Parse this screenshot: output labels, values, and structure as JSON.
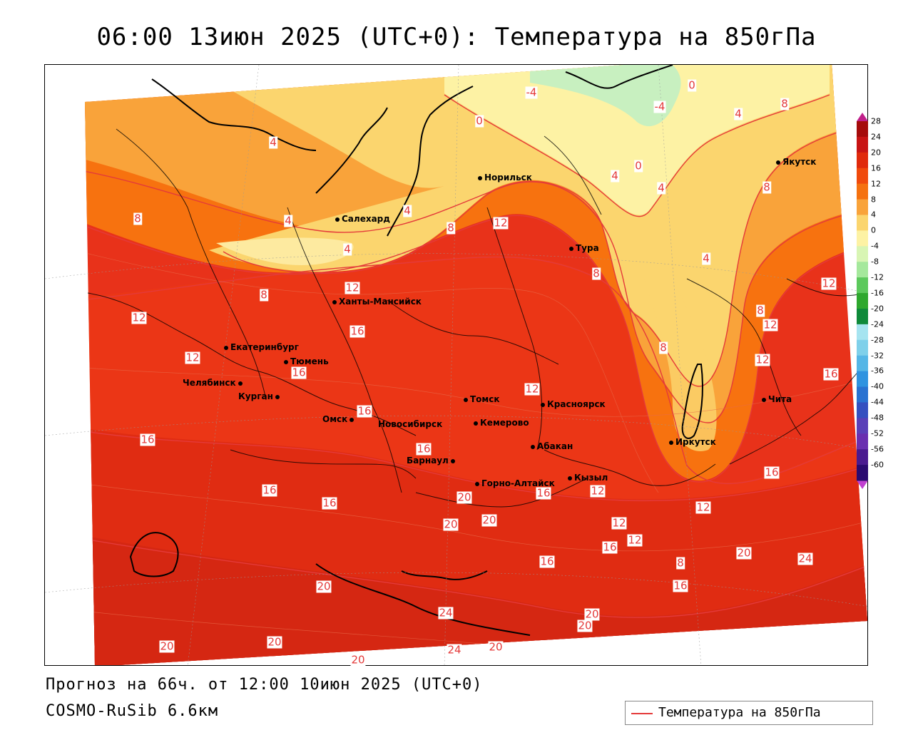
{
  "title": "06:00 13июн 2025 (UTC+0): Температура на 850гПа",
  "footer": {
    "forecast": "Прогноз на 66ч. от 12:00 10июн 2025 (UTC+0)",
    "model": "COSMO-RuSib 6.6км"
  },
  "legend": {
    "label": "Температура на 850гПа",
    "line_color": "#e43a3a"
  },
  "colorbar": {
    "ticks": [
      "28",
      "24",
      "20",
      "16",
      "12",
      "8",
      "4",
      "0",
      "-4",
      "-8",
      "-12",
      "-16",
      "-20",
      "-24",
      "-28",
      "-32",
      "-36",
      "-40",
      "-44",
      "-48",
      "-52",
      "-56",
      "-60"
    ],
    "colors": [
      "#a50b0b",
      "#c81414",
      "#e02a0c",
      "#f04a0c",
      "#f5710f",
      "#f9a33a",
      "#fbd56e",
      "#fdf2a4",
      "#d8f5b4",
      "#a5e89c",
      "#5cc95c",
      "#2ea82e",
      "#0f8a3a",
      "#a6e4f0",
      "#7fd0ea",
      "#55b6e6",
      "#2f93e0",
      "#2a72d1",
      "#3550c0",
      "#5a40b8",
      "#6a2fb0",
      "#4a1a90",
      "#2a0a70"
    ]
  },
  "cities": [
    {
      "name": "Якутск"
    },
    {
      "name": "Норильск"
    },
    {
      "name": "Салехард"
    },
    {
      "name": "Тура"
    },
    {
      "name": "Ханты-Мансийск"
    },
    {
      "name": "Екатеринбург"
    },
    {
      "name": "Тюмень"
    },
    {
      "name": "Челябинск"
    },
    {
      "name": "Курган"
    },
    {
      "name": "Омск"
    },
    {
      "name": "Новосибирск"
    },
    {
      "name": "Томск"
    },
    {
      "name": "Кемерово"
    },
    {
      "name": "Красноярск"
    },
    {
      "name": "Абакан"
    },
    {
      "name": "Барнаул"
    },
    {
      "name": "Горно-Алтайск"
    },
    {
      "name": "Кызыл"
    },
    {
      "name": "Иркутск"
    },
    {
      "name": "Чита"
    }
  ],
  "contour_labels": [
    "-4",
    "0",
    "-4",
    "4",
    "8",
    "0",
    "4",
    "0",
    "8",
    "4",
    "4",
    "8",
    "4",
    "4",
    "12",
    "8",
    "4",
    "8",
    "4",
    "12",
    "8",
    "8",
    "12",
    "12",
    "12",
    "16",
    "16",
    "12",
    "12",
    "16",
    "16",
    "16",
    "16",
    "16",
    "16",
    "16",
    "12",
    "8",
    "12",
    "12",
    "16",
    "20",
    "20",
    "20",
    "16",
    "12",
    "12",
    "16",
    "8",
    "20",
    "24",
    "16",
    "20",
    "20",
    "24",
    "20",
    "20",
    "20",
    "24",
    "20",
    "20"
  ]
}
